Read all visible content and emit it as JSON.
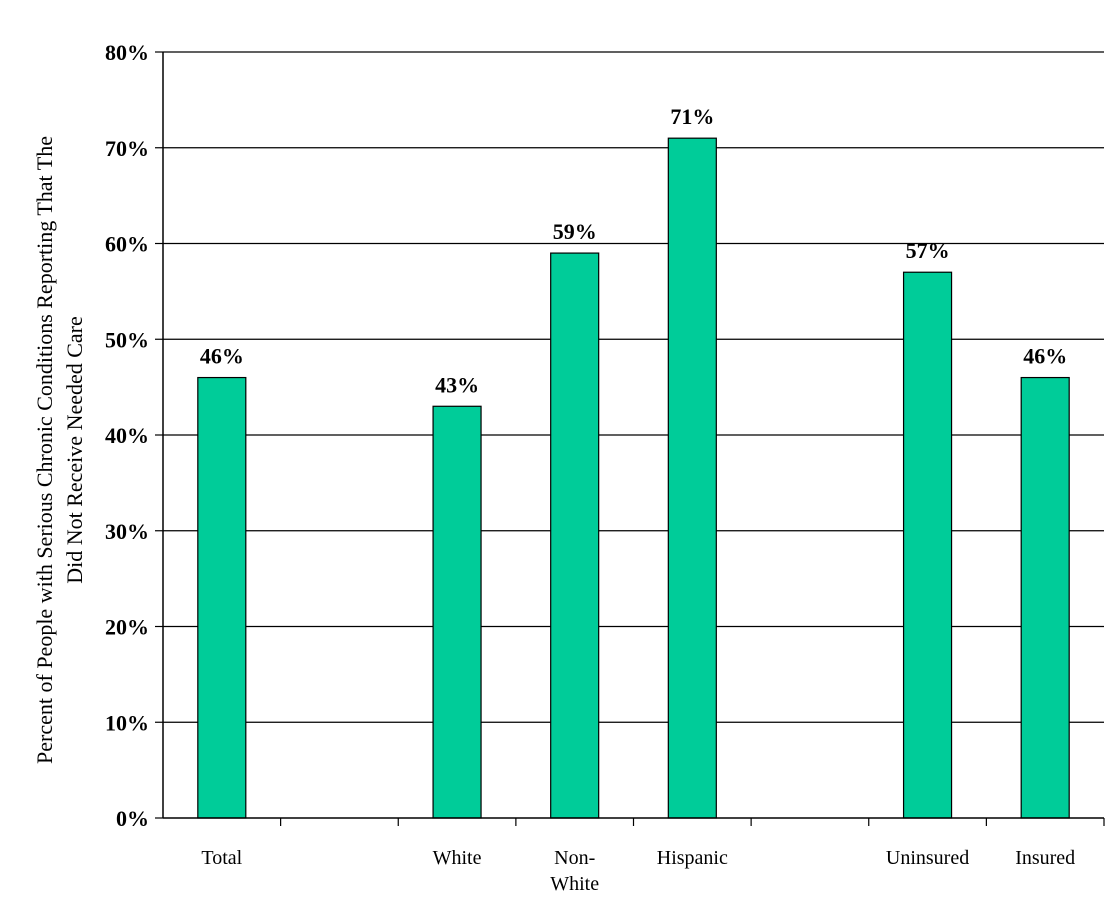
{
  "chart_data": {
    "type": "bar",
    "categories": [
      [
        "Total"
      ],
      [
        ""
      ],
      [
        "White"
      ],
      [
        "Non-",
        "White"
      ],
      [
        "Hispanic"
      ],
      [
        ""
      ],
      [
        "Uninsured"
      ],
      [
        "Insured"
      ]
    ],
    "values": [
      46,
      null,
      43,
      59,
      71,
      null,
      57,
      46
    ],
    "data_labels": [
      "46%",
      "",
      "43%",
      "59%",
      "71%",
      "",
      "57%",
      "46%"
    ],
    "ylabel": [
      "Percent of People with Serious Chronic Conditions Reporting That The",
      "Did Not Receive Needed Care"
    ],
    "xlabel": "",
    "ylim": [
      0,
      80
    ],
    "yticks": [
      0,
      10,
      20,
      30,
      40,
      50,
      60,
      70,
      80
    ],
    "ytick_labels": [
      "0%",
      "10%",
      "20%",
      "30%",
      "40%",
      "50%",
      "60%",
      "70%",
      "80%"
    ],
    "grid": true,
    "bar_color": "#00CC99"
  }
}
